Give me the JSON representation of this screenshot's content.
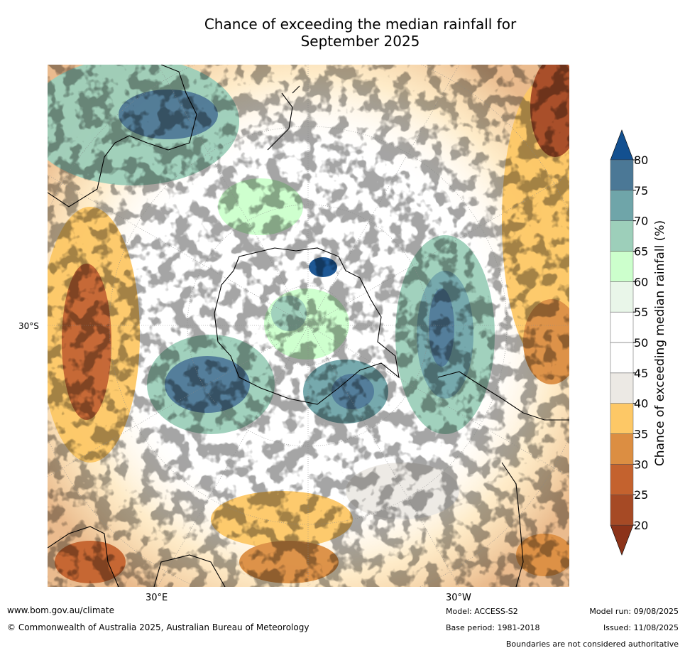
{
  "title_line1": "Chance of exceeding the median rainfall for",
  "title_line2": "September 2025",
  "map": {
    "lat_label": "30°S",
    "lon_labels": [
      "30°E",
      "30°W"
    ]
  },
  "colorbar": {
    "title": "Chance of exceeding median rainfall (%)",
    "ticks": [
      "20",
      "25",
      "30",
      "35",
      "40",
      "45",
      "50",
      "55",
      "60",
      "65",
      "70",
      "75",
      "80"
    ],
    "colors": [
      "#a64a25",
      "#c4622e",
      "#dc8e42",
      "#fdc866",
      "#ece9e4",
      "#ffffff",
      "#ffffff",
      "#e9f6e9",
      "#ccffcc",
      "#9dcfba",
      "#6fa5a9",
      "#4b7896"
    ],
    "under_color": "#8c3319",
    "over_color": "#135090"
  },
  "footer": {
    "website": "www.bom.gov.au/climate",
    "copyright": "© Commonwealth of Australia 2025, Australian Bureau of Meteorology",
    "model": "Model: ACCESS-S2",
    "base_period": "Base period: 1981-2018",
    "model_run": "Model run: 09/08/2025",
    "issued": "Issued: 11/08/2025",
    "disclaimer": "Boundaries are not considered authoritative"
  }
}
